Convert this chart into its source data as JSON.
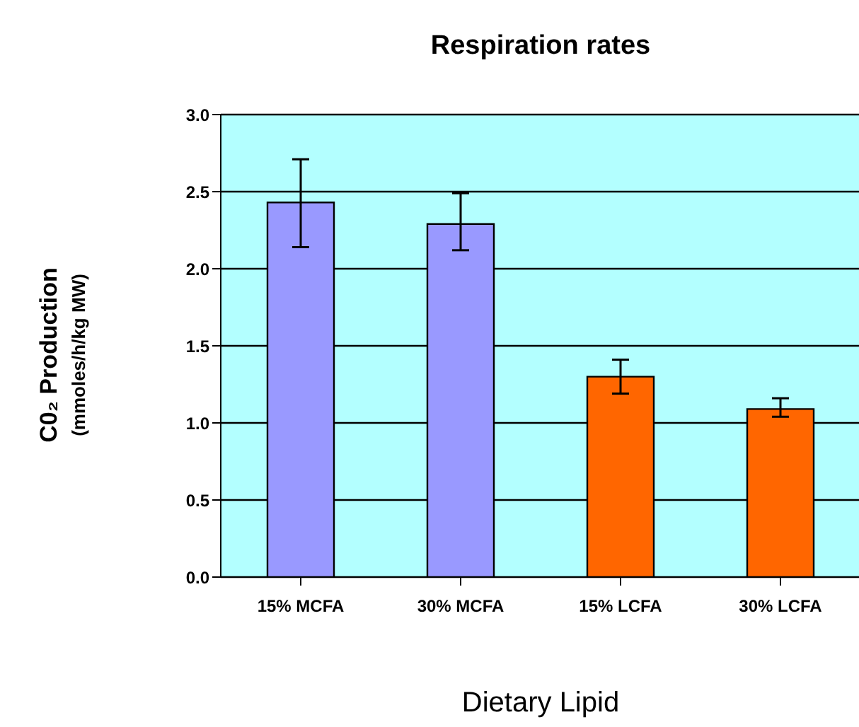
{
  "chart_data": {
    "type": "bar",
    "title": "Respiration rates",
    "xlabel": "Dietary Lipid",
    "ylabel": "C0₂ Production\n(mmoles/h/kg MW)",
    "categories": [
      "15% MCFA",
      "30% MCFA",
      "15% LCFA",
      "30% LCFA"
    ],
    "values": [
      2.43,
      2.29,
      1.3,
      1.09
    ],
    "colors": [
      "#9999ff",
      "#9999ff",
      "#ff6600",
      "#ff6600"
    ],
    "errors": [
      [
        2.14,
        2.71
      ],
      [
        2.12,
        2.49
      ],
      [
        1.19,
        1.41
      ],
      [
        1.04,
        1.16
      ]
    ],
    "ylim": [
      0,
      3
    ],
    "yticks": [
      {
        "value": 0,
        "label": "0.0"
      },
      {
        "value": 0.5,
        "label": "0.5"
      },
      {
        "value": 1,
        "label": "1.0"
      },
      {
        "value": 1.5,
        "label": "1.5"
      },
      {
        "value": 2,
        "label": "2.0"
      },
      {
        "value": 2.5,
        "label": "2.5"
      },
      {
        "value": 3,
        "label": "3.0"
      }
    ],
    "grid": "y",
    "legend": false
  }
}
